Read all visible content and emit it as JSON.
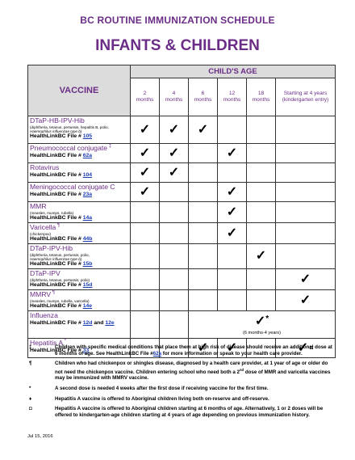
{
  "title": "BC ROUTINE IMMUNIZATION SCHEDULE",
  "subtitle": "INFANTS & CHILDREN",
  "header": {
    "childs_age": "CHILD'S AGE",
    "vaccine": "VACCINE",
    "columns": [
      "2\nmonths",
      "4\nmonths",
      "6\nmonths",
      "12\nmonths",
      "18\nmonths",
      "Starting at 4 years (kindergarten entry)"
    ]
  },
  "check_mark": "✓",
  "rows": [
    {
      "name": "DTaP-HB-IPV-Hib",
      "sup": "",
      "desc": "(diphtheria, tetanus, pertussis, hepatitis B, polio,",
      "desc2": "Haemophilus influenzae type b)",
      "file_label": "HealthLinkBC File #",
      "file": "105"
    },
    {
      "name": "Pneumococcal conjugate",
      "sup": "‡",
      "desc": "",
      "desc2": "",
      "file_label": "HealthLinkBC File #",
      "file": "62a"
    },
    {
      "name": "Rotavirus",
      "sup": "",
      "desc": "",
      "desc2": "",
      "file_label": "HealthLinkBC File #",
      "file": "104"
    },
    {
      "name": "Meningococcal conjugate C",
      "sup": "",
      "desc": "",
      "desc2": "",
      "file_label": "HealthLinkBC File #",
      "file": "23a"
    },
    {
      "name": "MMR",
      "sup": "",
      "desc": "(measles, mumps, rubella)",
      "desc2": "",
      "file_label": "HealthLinkBC File #",
      "file": "14a"
    },
    {
      "name": "Varicella",
      "sup": "¶",
      "desc": "(chickenpox)",
      "desc2": "",
      "file_label": "HealthLinkBC File #",
      "file": "44b"
    },
    {
      "name": "DTaP-IPV-Hib",
      "sup": "",
      "desc": "(diphtheria, tetanus, pertussis, polio,",
      "desc2": "Haemophilus influenzae type b)",
      "file_label": "HealthLinkBC File #",
      "file": "15b"
    },
    {
      "name": "DTaP-IPV",
      "sup": "",
      "desc": "(diphtheria, tetanus, pertussis, polio)",
      "desc2": "",
      "file_label": "HealthLinkBC File #",
      "file": "15d"
    },
    {
      "name": "MMRV",
      "sup": "¶",
      "desc": "(measles, mumps, rubella, varicella)",
      "desc2": "",
      "file_label": "HealthLinkBC File #",
      "file": "14e"
    },
    {
      "name": "Influenza",
      "sup": "",
      "desc": "",
      "desc2": "",
      "file_label": "HealthLinkBC File #",
      "file": "12d",
      "file_and": "and",
      "file2": "12e"
    },
    {
      "name": "Hepatitis A",
      "sup": "*",
      "desc": "",
      "desc2": "",
      "file_label": "HealthLinkBC File #",
      "file": "33"
    }
  ],
  "influenza_cell": {
    "star": "*",
    "note": "(6 months-4 years)"
  },
  "hepatitis_extra": "◘",
  "notes": [
    {
      "sym": "‡",
      "text_a": "Children with specific medical conditions that place them at high risk of disease should receive an additional dose at 6 months of age. See HealthLinkBC File #",
      "link": "62a",
      "text_b": " for more information or speak to your health care provider."
    },
    {
      "sym": "¶",
      "text_a": "Children who had chickenpox or shingles disease, diagnosed by a health care provider, at 1 year of age or older do not need the chickenpox vaccine. Children entering school who need both a 2",
      "sup": "nd",
      "text_b": " dose of MMR and varicella vaccines may be immunized with MMRV vaccine."
    },
    {
      "sym": "*",
      "text_a": "A second dose is needed 4 weeks after the first dose if receiving vaccine for the first time.",
      "text_b": ""
    },
    {
      "sym": "♦",
      "text_a": "Hepatitis A vaccine is offered to Aboriginal children living both on-reserve and off-reserve.",
      "text_b": ""
    },
    {
      "sym": "◘",
      "text_a": "Hepatitis A vaccine is offered to Aboriginal children starting at 6 months of age. Alternatively, 1 or 2 doses will be offered to kindergarten-age children starting at 4 years of age depending on previous immunization history.",
      "text_b": ""
    }
  ],
  "date": "Jul 15, 2016"
}
